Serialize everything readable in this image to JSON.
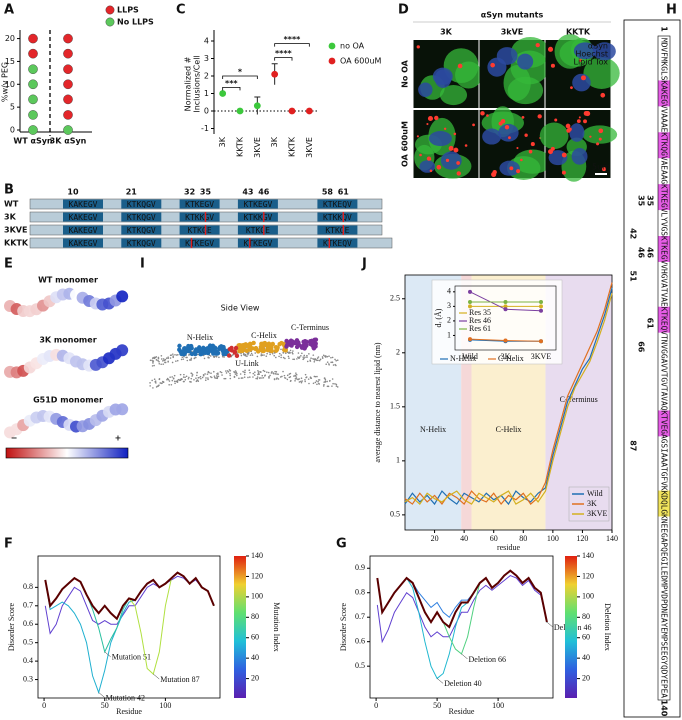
{
  "panel_labels": [
    "A",
    "B",
    "C",
    "D",
    "E",
    "F",
    "G",
    "H",
    "I",
    "J"
  ],
  "panel_a": {
    "type": "scatter",
    "ylabel": "%w/v PEG",
    "ylim": [
      0,
      21
    ],
    "yticks": [
      0,
      5,
      10,
      15,
      20
    ],
    "categories": [
      "WT αSyn",
      "3K αSyn"
    ],
    "series": [
      {
        "name": "LLPS",
        "color": "#e3262a",
        "values": [
          [
            16.7,
            20
          ],
          [
            3.3,
            6.7,
            10,
            13.3,
            16.7,
            20
          ]
        ]
      },
      {
        "name": "No LLPS",
        "color": "#5cc85c",
        "values": [
          [
            0,
            3.3,
            6.7,
            10,
            13.3
          ],
          [
            0
          ]
        ]
      }
    ]
  },
  "panel_c": {
    "type": "dot_error",
    "ylabel": [
      "Normalized #",
      "Inclusions/Cell"
    ],
    "ylim": [
      -1.2,
      4.4
    ],
    "yticks": [
      -1,
      0,
      1,
      2,
      3,
      4
    ],
    "categories": [
      "3K",
      "KKTK",
      "3KVE",
      "3K",
      "KKTK",
      "3KVE"
    ],
    "series": [
      {
        "name": "no OA",
        "color": "#3cc83c",
        "values": [
          1,
          0,
          0.3,
          null,
          null,
          null
        ],
        "errors": [
          0.05,
          0,
          0.5,
          null,
          null,
          null
        ]
      },
      {
        "name": "OA 600uM",
        "color": "#e02020",
        "values": [
          null,
          null,
          null,
          2.1,
          0,
          0
        ],
        "errors": [
          null,
          null,
          null,
          0.6,
          0,
          0
        ]
      }
    ],
    "brackets": [
      "***",
      "*",
      "****",
      "****"
    ]
  },
  "panel_d": {
    "header": "αSyn mutants",
    "columns": [
      "3K",
      "3kVE",
      "KKTK"
    ],
    "rows": [
      "No OA",
      "OA 600uM"
    ],
    "channels": [
      {
        "name": "αSyn",
        "color": "#7cff5a"
      },
      {
        "name": "Hoechst",
        "color": "#4aa0ff"
      },
      {
        "name": "Lipid Tox",
        "color": "#ff4040"
      }
    ],
    "scale_bar": "5um"
  },
  "panel_b": {
    "positions": [
      10,
      21,
      32,
      35,
      43,
      46,
      58,
      61
    ],
    "rows": [
      {
        "label": "WT",
        "motifs": [
          "KAKEGV",
          "KTKQGV",
          "KTKEGV",
          "KTKEGV",
          "KTKEQV"
        ]
      },
      {
        "label": "3K",
        "motifs": [
          "KAKEGV",
          "KTKQGV",
          "KTKKGV",
          "KTKKGV",
          "KTKKQV"
        ]
      },
      {
        "label": "3KVE",
        "motifs": [
          "KAKEGV",
          "KTKQGV",
          "KTKGE",
          "KTKGE",
          "KTKGE"
        ]
      },
      {
        "label": "KKTK",
        "motifs": [
          "KAKEGV",
          "KTKQGV",
          "KTKEGV",
          "KTKEGV",
          "KTKEQV"
        ]
      }
    ]
  },
  "panel_e": {
    "labels": [
      "WT monomer",
      "3K monomer",
      "G51D monomer"
    ],
    "minus": "−",
    "plus": "+"
  },
  "panel_i": {
    "title": "Side View",
    "labels": [
      "N-Helix",
      "C-Helix",
      "U-Link",
      "C-Terminus"
    ]
  },
  "panel_j": {
    "type": "line",
    "ylabel": "average distance to nearest lipid (nm)",
    "xlabel": "residue",
    "xlim": [
      0,
      140
    ],
    "ylim": [
      0.36,
      2.72
    ],
    "xticks": [
      20,
      40,
      60,
      80,
      100,
      120,
      140
    ],
    "yticks": [
      0.5,
      1.0,
      1.5,
      2.0,
      2.5
    ],
    "regions": [
      {
        "label": "N-Helix",
        "range": [
          0,
          38
        ],
        "color": "#dce9f5"
      },
      {
        "range": [
          38,
          45
        ],
        "color": "#f5d8d8"
      },
      {
        "label": "C-Helix",
        "range": [
          45,
          95
        ],
        "color": "#fbefcf"
      },
      {
        "label": "C-Terminus",
        "range": [
          95,
          140
        ],
        "color": "#e8dcef"
      }
    ],
    "x": [
      0,
      5,
      10,
      15,
      20,
      25,
      30,
      35,
      40,
      45,
      50,
      55,
      60,
      65,
      70,
      75,
      80,
      85,
      90,
      95,
      100,
      105,
      110,
      115,
      120,
      125,
      130,
      135,
      140
    ],
    "series": [
      {
        "name": "Wild",
        "color": "#1f6fb4",
        "values": [
          0.6,
          0.7,
          0.62,
          0.68,
          0.6,
          0.72,
          0.65,
          0.6,
          0.7,
          0.66,
          0.62,
          0.7,
          0.64,
          0.68,
          0.6,
          0.72,
          0.66,
          0.62,
          0.7,
          0.75,
          1.05,
          1.3,
          1.55,
          1.7,
          1.85,
          1.95,
          2.15,
          2.35,
          2.6
        ]
      },
      {
        "name": "3K",
        "color": "#e07020",
        "values": [
          0.65,
          0.6,
          0.7,
          0.62,
          0.68,
          0.6,
          0.7,
          0.66,
          0.6,
          0.72,
          0.65,
          0.62,
          0.7,
          0.6,
          0.68,
          0.64,
          0.7,
          0.6,
          0.66,
          0.8,
          1.1,
          1.35,
          1.6,
          1.75,
          1.9,
          2.05,
          2.2,
          2.4,
          2.65
        ]
      },
      {
        "name": "3KVE",
        "color": "#d4b020",
        "values": [
          0.62,
          0.66,
          0.6,
          0.7,
          0.65,
          0.62,
          0.68,
          0.72,
          0.64,
          0.6,
          0.7,
          0.66,
          0.62,
          0.68,
          0.72,
          0.6,
          0.64,
          0.7,
          0.62,
          0.72,
          1.0,
          1.25,
          1.5,
          1.68,
          1.8,
          1.92,
          2.1,
          2.3,
          2.55
        ]
      }
    ],
    "inset": {
      "ylabel": "dᵣ (Å)",
      "ylim": [
        0,
        4.4
      ],
      "yticks": [
        1,
        2,
        3,
        4
      ],
      "categories": [
        "Wild",
        "3K",
        "3KVE"
      ],
      "series": [
        {
          "name": "Res 35",
          "color": "#d4b020",
          "values": [
            3.0,
            3.0,
            3.0
          ]
        },
        {
          "name": "Res 46",
          "color": "#7b3fa0",
          "values": [
            4.0,
            2.8,
            2.7
          ]
        },
        {
          "name": "Res 61",
          "color": "#7cb342",
          "values": [
            3.3,
            3.3,
            3.3
          ]
        },
        {
          "name": "N-Helix",
          "color": "#1f6fb4",
          "values": [
            0.7,
            0.6,
            0.6
          ]
        },
        {
          "name": "C-Helix",
          "color": "#e07020",
          "values": [
            0.75,
            0.65,
            0.6
          ]
        }
      ]
    }
  },
  "panel_f": {
    "type": "line",
    "ylabel": "Disorder Score",
    "xlabel": "Residue",
    "xlim": [
      -5,
      145
    ],
    "ylim": [
      0.2,
      0.97
    ],
    "xticks": [
      0,
      50,
      100
    ],
    "yticks": [
      0.3,
      0.4,
      0.5,
      0.6,
      0.7,
      0.8
    ],
    "colorbar": {
      "label": "Mutation Index",
      "clim": [
        1,
        140
      ],
      "ticks": [
        20,
        40,
        60,
        80,
        100,
        120,
        140
      ]
    },
    "x": [
      1,
      5,
      10,
      15,
      20,
      25,
      30,
      35,
      40,
      45,
      50,
      55,
      60,
      65,
      70,
      75,
      80,
      85,
      90,
      95,
      100,
      105,
      110,
      115,
      120,
      125,
      130,
      135,
      140
    ],
    "series": [
      {
        "color": "#6040d0",
        "values": [
          0.7,
          0.55,
          0.6,
          0.7,
          0.75,
          0.8,
          0.78,
          0.7,
          0.62,
          0.6,
          0.62,
          0.6,
          0.6,
          0.65,
          0.7,
          0.7,
          0.75,
          0.8,
          0.82,
          0.8,
          0.82,
          0.84,
          0.86,
          0.85,
          0.82,
          0.84,
          0.8,
          0.78,
          0.7
        ]
      },
      {
        "color": "#20b0d0",
        "annotation": "Mutation 42",
        "values": [
          0.84,
          0.68,
          0.7,
          0.72,
          0.7,
          0.66,
          0.6,
          0.5,
          0.32,
          0.23,
          0.35,
          0.5,
          0.58,
          0.66,
          0.72,
          0.73,
          0.78,
          0.82,
          0.84,
          0.8,
          0.82,
          0.85,
          0.88,
          0.86,
          0.82,
          0.85,
          0.8,
          0.78,
          0.7
        ]
      },
      {
        "color": "#2ac0a0",
        "annotation": "Mutation 51",
        "values": [
          0.84,
          0.7,
          0.74,
          0.79,
          0.82,
          0.85,
          0.83,
          0.76,
          0.68,
          0.58,
          0.45,
          0.52,
          0.58,
          0.68,
          0.74,
          0.73,
          0.78,
          0.82,
          0.84,
          0.8,
          0.82,
          0.85,
          0.88,
          0.86,
          0.82,
          0.85,
          0.8,
          0.78,
          0.7
        ]
      },
      {
        "color": "#b0e040",
        "annotation": "Mutation 87",
        "values": [
          0.84,
          0.7,
          0.74,
          0.79,
          0.82,
          0.85,
          0.83,
          0.76,
          0.7,
          0.66,
          0.7,
          0.66,
          0.63,
          0.7,
          0.74,
          0.7,
          0.55,
          0.36,
          0.33,
          0.45,
          0.7,
          0.85,
          0.88,
          0.86,
          0.82,
          0.85,
          0.8,
          0.78,
          0.7
        ]
      },
      {
        "color": "#5a0000",
        "values": [
          0.84,
          0.7,
          0.74,
          0.79,
          0.82,
          0.85,
          0.83,
          0.76,
          0.7,
          0.66,
          0.7,
          0.66,
          0.63,
          0.7,
          0.74,
          0.73,
          0.78,
          0.82,
          0.84,
          0.8,
          0.82,
          0.85,
          0.88,
          0.86,
          0.82,
          0.85,
          0.8,
          0.78,
          0.7
        ]
      }
    ]
  },
  "panel_g": {
    "type": "line",
    "ylabel": "Disorder Score",
    "xlabel": "Residue",
    "xlim": [
      -5,
      145
    ],
    "ylim": [
      0.37,
      0.95
    ],
    "xticks": [
      0,
      50,
      100
    ],
    "yticks": [
      0.5,
      0.6,
      0.7,
      0.8,
      0.9
    ],
    "colorbar": {
      "label": "Deletion Index",
      "clim": [
        1,
        140
      ],
      "ticks": [
        20,
        40,
        60,
        80,
        100,
        120,
        140
      ]
    },
    "x": [
      1,
      5,
      10,
      15,
      20,
      25,
      30,
      35,
      40,
      45,
      50,
      55,
      60,
      65,
      70,
      75,
      80,
      85,
      90,
      95,
      100,
      105,
      110,
      115,
      120,
      125,
      130,
      135,
      140
    ],
    "series": [
      {
        "color": "#6040d0",
        "values": [
          0.75,
          0.6,
          0.65,
          0.72,
          0.76,
          0.8,
          0.78,
          0.72,
          0.66,
          0.62,
          0.64,
          0.62,
          0.62,
          0.67,
          0.72,
          0.72,
          0.77,
          0.81,
          0.83,
          0.81,
          0.83,
          0.85,
          0.87,
          0.86,
          0.83,
          0.85,
          0.81,
          0.79,
          0.68
        ]
      },
      {
        "color": "#3080e0",
        "annotation": "Deletion 46",
        "values": [
          0.86,
          0.72,
          0.76,
          0.8,
          0.83,
          0.86,
          0.84,
          0.8,
          0.77,
          0.74,
          0.76,
          0.72,
          0.7,
          0.74,
          0.77,
          0.77,
          0.8,
          0.84,
          0.86,
          0.82,
          0.84,
          0.87,
          0.89,
          0.87,
          0.84,
          0.86,
          0.82,
          0.8,
          0.68
        ]
      },
      {
        "color": "#20b8d0",
        "annotation": "Deletion 40",
        "values": [
          0.86,
          0.72,
          0.76,
          0.8,
          0.83,
          0.86,
          0.82,
          0.72,
          0.6,
          0.5,
          0.45,
          0.47,
          0.55,
          0.66,
          0.74,
          0.76,
          0.8,
          0.84,
          0.86,
          0.82,
          0.84,
          0.87,
          0.89,
          0.87,
          0.84,
          0.86,
          0.82,
          0.8,
          0.68
        ]
      },
      {
        "color": "#50d080",
        "annotation": "Deletion 66",
        "values": [
          0.86,
          0.72,
          0.76,
          0.8,
          0.83,
          0.86,
          0.84,
          0.78,
          0.72,
          0.68,
          0.72,
          0.68,
          0.62,
          0.57,
          0.55,
          0.62,
          0.74,
          0.84,
          0.86,
          0.82,
          0.84,
          0.87,
          0.89,
          0.87,
          0.84,
          0.86,
          0.82,
          0.8,
          0.68
        ]
      },
      {
        "color": "#5a0000",
        "values": [
          0.86,
          0.72,
          0.76,
          0.8,
          0.83,
          0.86,
          0.84,
          0.78,
          0.72,
          0.68,
          0.72,
          0.68,
          0.66,
          0.72,
          0.76,
          0.76,
          0.8,
          0.84,
          0.86,
          0.82,
          0.84,
          0.87,
          0.89,
          0.87,
          0.84,
          0.86,
          0.82,
          0.8,
          0.68
        ]
      }
    ]
  },
  "panel_h": {
    "sequence": "MDVFMKGLSKAKEGVVAAAEKTKQGVAEAAGKTKEGVLYVGSKTKEGVVHGVATVAEKTKEQVTNVGGAVVTGVTAVAQKTVEGAGSIAAATGFVKKDQLGKNEEGAPQEGILEDMPVDPDNEAYEMPSEEGYQDYEPEA",
    "start": 1,
    "end": 140,
    "sites": [
      {
        "value": 35,
        "color": "#e02020"
      },
      {
        "value": 35,
        "color": "#3cb83c"
      },
      {
        "value": 42,
        "color": "#8a2ab0"
      },
      {
        "value": 46,
        "color": "#e02020"
      },
      {
        "value": 46,
        "color": "#3cb83c"
      },
      {
        "value": 51,
        "color": "#8a2ab0"
      },
      {
        "value": 61,
        "color": "#e02020"
      },
      {
        "value": 66,
        "color": "#3cb83c"
      },
      {
        "value": 87,
        "color": "#8a2ab0"
      }
    ]
  }
}
